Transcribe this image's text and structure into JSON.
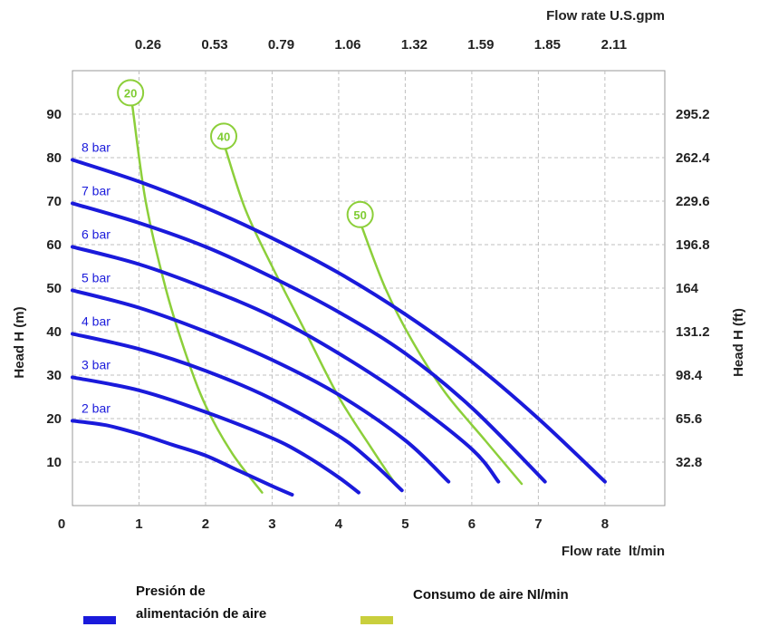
{
  "chart_data": {
    "type": "line",
    "x_bottom": {
      "label": "Flow rate  lt/min",
      "ticks": [
        0,
        1,
        2,
        3,
        4,
        5,
        6,
        7,
        8
      ],
      "range": [
        0,
        8.9
      ]
    },
    "x_top": {
      "label": "Flow rate U.S.gpm",
      "ticks": [
        "0.26",
        "0.53",
        "0.79",
        "1.06",
        "1.32",
        "1.59",
        "1.85",
        "2.11"
      ]
    },
    "y_left": {
      "label": "Head H (m)",
      "ticks": [
        10,
        20,
        30,
        40,
        50,
        60,
        70,
        80,
        90
      ],
      "range": [
        0,
        100
      ]
    },
    "y_right": {
      "label": "Head H (ft)",
      "ticks": [
        "32.8",
        "65.6",
        "98.4",
        "131.2",
        "164",
        "196.8",
        "229.6",
        "262.4",
        "295.2"
      ]
    },
    "grid": true,
    "pressure_series": [
      {
        "name": "2 bar",
        "points": [
          [
            0,
            19.5
          ],
          [
            0.5,
            18.5
          ],
          [
            1,
            16.5
          ],
          [
            1.5,
            14
          ],
          [
            2,
            11.5
          ],
          [
            2.5,
            8
          ],
          [
            3,
            4.5
          ],
          [
            3.3,
            2.5
          ]
        ]
      },
      {
        "name": "3 bar",
        "points": [
          [
            0,
            29.5
          ],
          [
            1,
            26.5
          ],
          [
            2,
            21.5
          ],
          [
            3,
            15.5
          ],
          [
            3.5,
            11.5
          ],
          [
            4,
            6.5
          ],
          [
            4.3,
            3
          ]
        ]
      },
      {
        "name": "4 bar",
        "points": [
          [
            0,
            39.5
          ],
          [
            1,
            36
          ],
          [
            2,
            31
          ],
          [
            3,
            24.5
          ],
          [
            4,
            16
          ],
          [
            4.5,
            10
          ],
          [
            4.95,
            3.5
          ]
        ]
      },
      {
        "name": "5 bar",
        "points": [
          [
            0,
            49.5
          ],
          [
            1,
            45.5
          ],
          [
            2,
            40
          ],
          [
            3,
            33.5
          ],
          [
            4,
            25.5
          ],
          [
            5,
            15
          ],
          [
            5.65,
            5.5
          ]
        ]
      },
      {
        "name": "6 bar",
        "points": [
          [
            0,
            59.5
          ],
          [
            1,
            55.5
          ],
          [
            2,
            50
          ],
          [
            3,
            43.5
          ],
          [
            4,
            35
          ],
          [
            5,
            25
          ],
          [
            6,
            13
          ],
          [
            6.4,
            5.5
          ]
        ]
      },
      {
        "name": "7 bar",
        "points": [
          [
            0,
            69.5
          ],
          [
            1,
            65
          ],
          [
            2,
            59.5
          ],
          [
            3,
            52.5
          ],
          [
            4,
            44.5
          ],
          [
            5,
            35
          ],
          [
            6,
            22.5
          ],
          [
            7.1,
            5.5
          ]
        ]
      },
      {
        "name": "8 bar",
        "points": [
          [
            0,
            79.5
          ],
          [
            1,
            74.5
          ],
          [
            2,
            68.5
          ],
          [
            3,
            61.5
          ],
          [
            4,
            53.5
          ],
          [
            5,
            44
          ],
          [
            6,
            33
          ],
          [
            7,
            20
          ],
          [
            8,
            5.5
          ]
        ]
      }
    ],
    "air_series": [
      {
        "name": "20",
        "points": [
          [
            0.9,
            92
          ],
          [
            1.1,
            70
          ],
          [
            1.4,
            50
          ],
          [
            1.7,
            35
          ],
          [
            2.0,
            23
          ],
          [
            2.4,
            12
          ],
          [
            2.85,
            3
          ]
        ]
      },
      {
        "name": "40",
        "points": [
          [
            2.3,
            82
          ],
          [
            2.6,
            68
          ],
          [
            3.0,
            55
          ],
          [
            3.5,
            40
          ],
          [
            4.0,
            25
          ],
          [
            4.5,
            13
          ],
          [
            4.85,
            5
          ]
        ]
      },
      {
        "name": "50",
        "points": [
          [
            4.35,
            64
          ],
          [
            4.7,
            50
          ],
          [
            5.1,
            38
          ],
          [
            5.6,
            26
          ],
          [
            6.2,
            15
          ],
          [
            6.75,
            5
          ]
        ]
      }
    ],
    "colors": {
      "pressure": "#1a1adb",
      "air": "#8ccf3a",
      "grid": "#bfbfbf",
      "air_legend": "#c9cf3d"
    }
  },
  "legend": {
    "pressure_label_line1": "Presión de",
    "pressure_label_line2": "alimentación de aire",
    "air_label": "Consumo de aire Nl/min"
  }
}
